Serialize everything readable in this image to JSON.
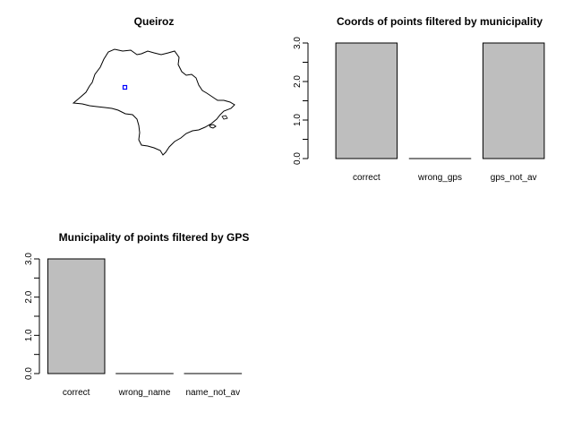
{
  "map_panel": {
    "title": "Queiroz",
    "point_color": "#0000ff"
  },
  "chart_data": [
    {
      "type": "bar",
      "title": "Coords of points filtered by municipality",
      "categories": [
        "correct",
        "wrong_gps",
        "gps_not_av"
      ],
      "values": [
        3,
        0,
        3
      ],
      "ylim": [
        0,
        3
      ],
      "y_ticks": [
        "0.0",
        "1.0",
        "2.0",
        "3.0"
      ],
      "xlabel": "",
      "ylabel": "",
      "bar_color": "#bebebe",
      "grid": false
    },
    {
      "type": "bar",
      "title": "Municipality of points filtered by GPS",
      "categories": [
        "correct",
        "wrong_name",
        "name_not_av"
      ],
      "values": [
        3,
        0,
        0
      ],
      "ylim": [
        0,
        3
      ],
      "y_ticks": [
        "0.0",
        "1.0",
        "2.0",
        "3.0"
      ],
      "xlabel": "",
      "ylabel": "",
      "bar_color": "#bebebe",
      "grid": false
    }
  ]
}
